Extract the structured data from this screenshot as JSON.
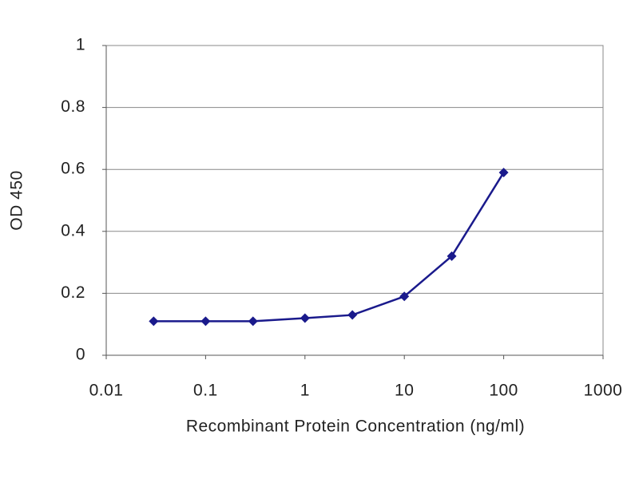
{
  "chart_data": {
    "type": "line",
    "x_label": "Recombinant Protein Concentration (ng/ml)",
    "y_label": "OD 450",
    "x": [
      0.03,
      0.1,
      0.3,
      1,
      3,
      10,
      30,
      100
    ],
    "values": [
      0.11,
      0.11,
      0.11,
      0.12,
      0.13,
      0.19,
      0.32,
      0.59
    ],
    "color": "#1a1a8c",
    "x_log": true,
    "xlim": [
      0.01,
      1000
    ],
    "xticks": [
      0.01,
      0.1,
      1,
      10,
      100,
      1000
    ],
    "ylim": [
      0,
      1
    ],
    "yticks": [
      0,
      0.2,
      0.4,
      0.6,
      0.8,
      1
    ],
    "grid": true
  }
}
